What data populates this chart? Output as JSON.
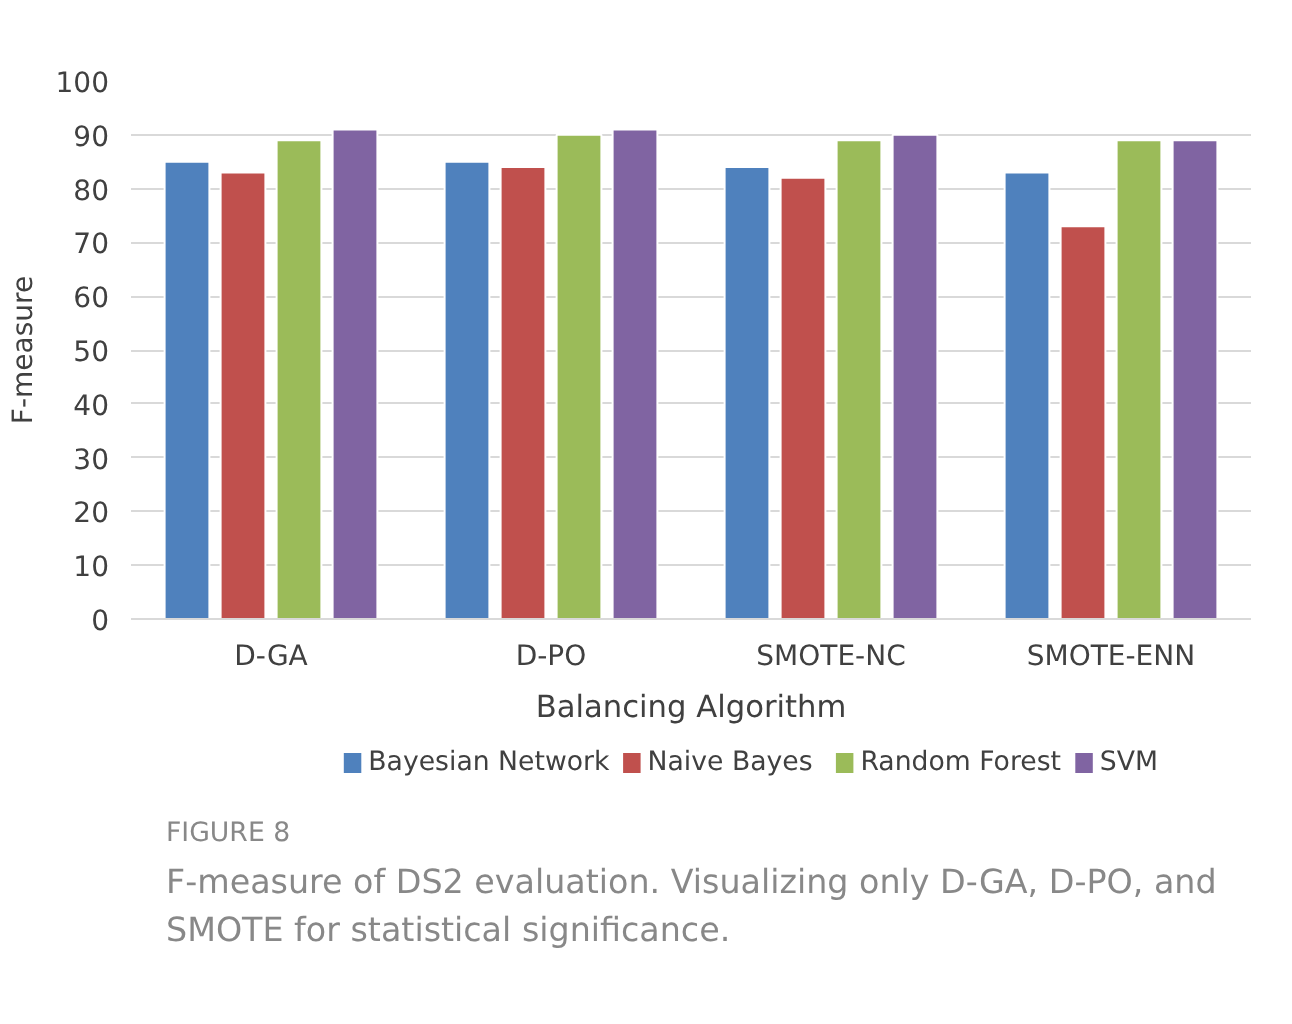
{
  "chart_data": {
    "type": "bar",
    "xlabel": "Balancing Algorithm",
    "ylabel": "F-measure",
    "categories": [
      "D-GA",
      "D-PO",
      "SMOTE-NC",
      "SMOTE-ENN"
    ],
    "series": [
      {
        "name": "Bayesian Network",
        "color": "#4f81bd",
        "values": [
          85,
          85,
          84,
          83
        ]
      },
      {
        "name": "Naive Bayes",
        "color": "#c0504d",
        "values": [
          83,
          84,
          82,
          73
        ]
      },
      {
        "name": "Random Forest",
        "color": "#9bbb59",
        "values": [
          89,
          90,
          89,
          89
        ]
      },
      {
        "name": "SVM",
        "color": "#8064a2",
        "values": [
          91,
          91,
          90,
          89
        ]
      }
    ],
    "ylim": [
      0,
      100
    ],
    "yticks": [
      0,
      10,
      20,
      30,
      40,
      50,
      60,
      70,
      80,
      90,
      100
    ],
    "grid": "y",
    "legend": "bottom",
    "annotations": [
      "FIGURE 8",
      "F-measure of DS2 evaluation. Visualizing only D-GA, D-PO, and SMOTE for statistical significance."
    ]
  }
}
